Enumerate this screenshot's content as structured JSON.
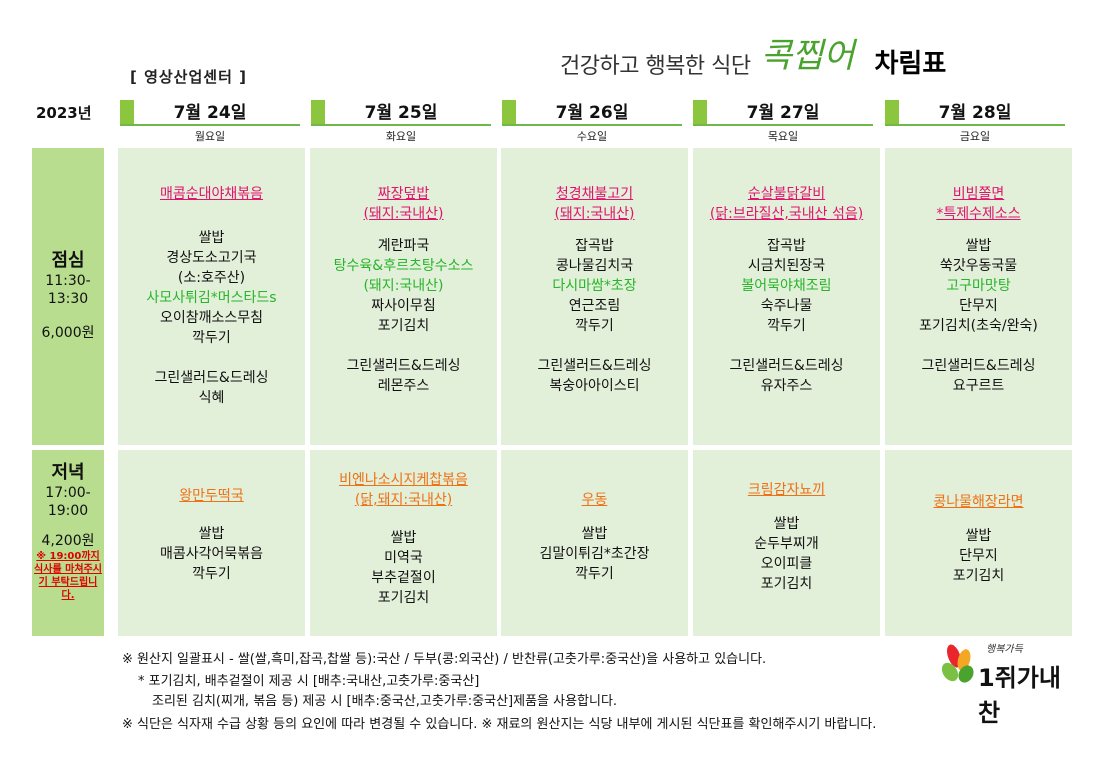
{
  "header": {
    "slogan": "건강하고 행복한 식단",
    "brand": "콕찝어",
    "sheet": "차림표",
    "center": "[ 영상산업센터 ]",
    "year": "2023년"
  },
  "days": [
    {
      "date": "7월 24일",
      "weekday": "월요일"
    },
    {
      "date": "7월 25일",
      "weekday": "화요일"
    },
    {
      "date": "7월 26일",
      "weekday": "수요일"
    },
    {
      "date": "7월 27일",
      "weekday": "목요일"
    },
    {
      "date": "7월 28일",
      "weekday": "금요일"
    }
  ],
  "lunch": {
    "name": "점심",
    "time1": "11:30-",
    "time2": "13:30",
    "price": "6,000원",
    "days": [
      {
        "main": [
          "매콤순대야채볶음"
        ],
        "items": [
          [
            "쌀밥",
            ""
          ],
          [
            "경상도소고기국",
            ""
          ],
          [
            "(소:호주산)",
            ""
          ],
          [
            "사모사튀김*머스타드s",
            "green"
          ],
          [
            "오이참깨소스무침",
            ""
          ],
          [
            "깍두기",
            ""
          ]
        ],
        "extra": [
          "그린샐러드&드레싱",
          "식혜"
        ]
      },
      {
        "main": [
          "짜장덮밥",
          "(돼지:국내산)"
        ],
        "items": [
          [
            "계란파국",
            ""
          ],
          [
            "탕수육&후르츠탕수소스",
            "green"
          ],
          [
            "(돼지:국내산)",
            "green"
          ],
          [
            "짜사이무침",
            ""
          ],
          [
            "포기김치",
            ""
          ]
        ],
        "extra": [
          "그린샐러드&드레싱",
          "레몬주스"
        ]
      },
      {
        "main": [
          "청경채불고기",
          "(돼지:국내산)"
        ],
        "items": [
          [
            "잡곡밥",
            ""
          ],
          [
            "콩나물김치국",
            ""
          ],
          [
            "다시마쌈*초장",
            "green"
          ],
          [
            "연근조림",
            ""
          ],
          [
            "깍두기",
            ""
          ]
        ],
        "extra": [
          "그린샐러드&드레싱",
          "복숭아아이스티"
        ]
      },
      {
        "main": [
          "순살불닭갈비",
          "(닭:브라질산,국내산 섞음)"
        ],
        "items": [
          [
            "잡곡밥",
            ""
          ],
          [
            "시금치된장국",
            ""
          ],
          [
            "볼어묵야채조림",
            "green"
          ],
          [
            "숙주나물",
            ""
          ],
          [
            "깍두기",
            ""
          ]
        ],
        "extra": [
          "그린샐러드&드레싱",
          "유자주스"
        ]
      },
      {
        "main": [
          "비빔쫄면",
          "*특제수제소스"
        ],
        "items": [
          [
            "쌀밥",
            ""
          ],
          [
            "쑥갓우동국물",
            ""
          ],
          [
            "고구마맛탕",
            "green"
          ],
          [
            "단무지",
            ""
          ],
          [
            "포기김치(초숙/완숙)",
            ""
          ]
        ],
        "extra": [
          "그린샐러드&드레싱",
          "요구르트"
        ]
      }
    ]
  },
  "dinner": {
    "name": "저녁",
    "time1": "17:00-",
    "time2": "19:00",
    "price": "4,200원",
    "notice": "※ 19:00까지 식사를 마쳐주시기 부탁드립니다.",
    "days": [
      {
        "main": [
          "왕만두떡국"
        ],
        "items": [
          "쌀밥",
          "매콤사각어묵볶음",
          "깍두기"
        ]
      },
      {
        "main": [
          "비엔나소시지케찹볶음",
          "(닭,돼지:국내산)"
        ],
        "items": [
          "쌀밥",
          "미역국",
          "부추겉절이",
          "포기김치"
        ]
      },
      {
        "main": [
          "우동"
        ],
        "items": [
          "쌀밥",
          "김말이튀김*초간장",
          "깍두기"
        ]
      },
      {
        "main": [
          "크림감자뇨끼"
        ],
        "items": [
          "쌀밥",
          "순두부찌개",
          "오이피클",
          "포기김치"
        ]
      },
      {
        "main": [
          "콩나물해장라면"
        ],
        "items": [
          "쌀밥",
          "단무지",
          "포기김치"
        ]
      }
    ]
  },
  "footer": {
    "line1": "※ 원산지 일괄표시 - 쌀(쌀,흑미,잡곡,찹쌀 등):국산 / 두부(콩:외국산) / 반찬류(고춧가루:중국산)을 사용하고 있습니다.",
    "line2": "* 포기김치, 배추겉절이 제공 시 [배추:국내산,고춧가루:중국산]",
    "line3": "조리된 김치(찌개, 볶음 등) 제공 시  [배추:중국산,고춧가루:중국산]제품을 사용합니다.",
    "line4": "※ 식단은 식자재 수급 상황 등의 요인에 따라 변경될 수 있습니다. ※ 재료의 원산지는 식당 내부에 게시된 식단표를 확인해주시기 바랍니다."
  },
  "logo": {
    "text": "1쥐가내찬",
    "tag": "행복가득",
    "colors": [
      "#e8262b",
      "#f5a623",
      "#7bc043"
    ]
  }
}
